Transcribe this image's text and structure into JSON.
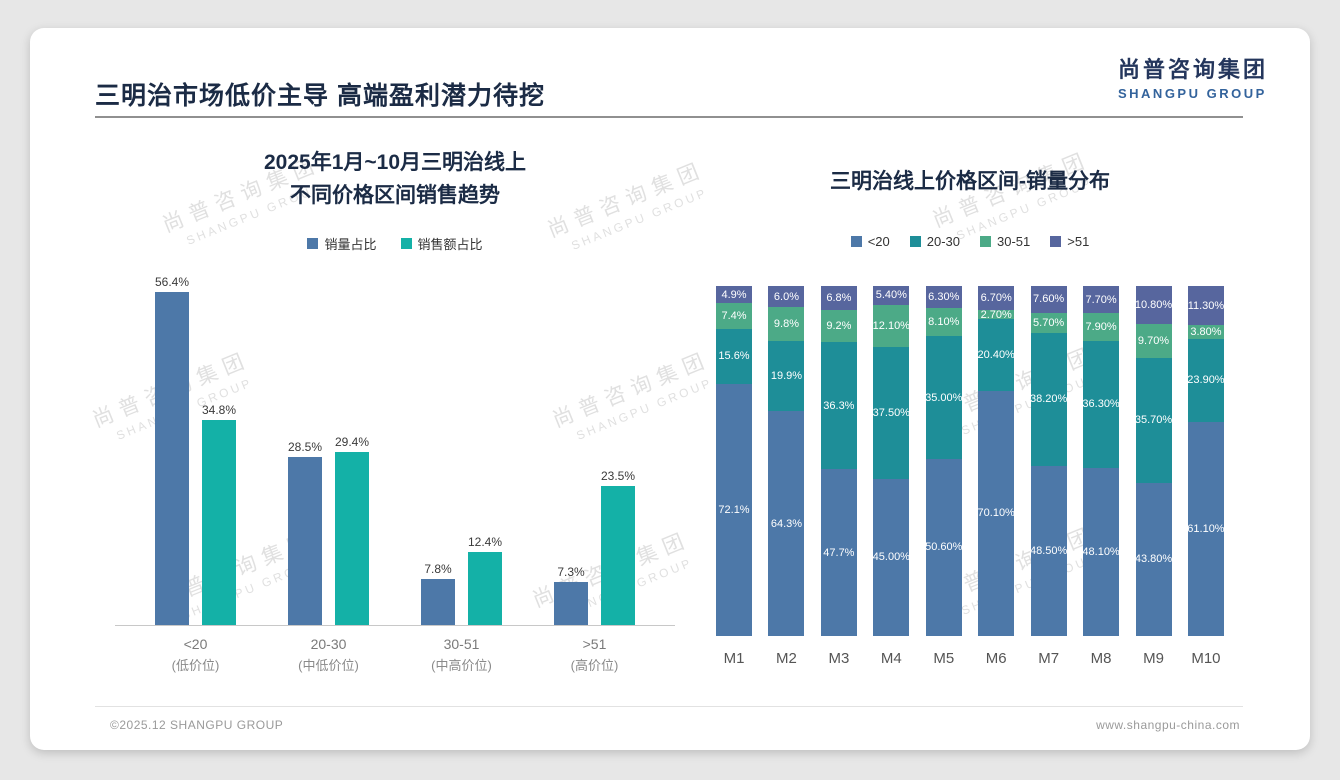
{
  "page": {
    "title": "三明治市场低价主导 高端盈利潜力待挖",
    "logo": {
      "cn": "尚普咨询集团",
      "en": "SHANGPU GROUP"
    },
    "watermark": {
      "line1": "尚普咨询集团",
      "line2": "SHANGPU GROUP"
    },
    "footer": {
      "left": "©2025.12 SHANGPU GROUP",
      "right": "www.shangpu-china.com"
    }
  },
  "chart_data": [
    {
      "type": "bar",
      "stacked": false,
      "title_lines": [
        "2025年1月~10月三明治线上",
        "不同价格区间销售趋势"
      ],
      "categories": [
        "<20",
        "20-30",
        "30-51",
        ">51"
      ],
      "category_sublabels": [
        "(低价位)",
        "(中低价位)",
        "(中高价位)",
        "(高价位)"
      ],
      "series": [
        {
          "name": "销量占比",
          "color": "#4d78a8",
          "values": [
            56.4,
            28.5,
            7.8,
            7.3
          ]
        },
        {
          "name": "销售额占比",
          "color": "#14b1a7",
          "values": [
            34.8,
            29.4,
            12.4,
            23.5
          ]
        }
      ],
      "ylim": [
        0,
        60
      ],
      "value_suffix": "%",
      "legend_position": "top",
      "grid": false
    },
    {
      "type": "bar",
      "stacked": true,
      "title": "三明治线上价格区间-销量分布",
      "categories": [
        "M1",
        "M2",
        "M3",
        "M4",
        "M5",
        "M6",
        "M7",
        "M8",
        "M9",
        "M10"
      ],
      "series": [
        {
          "name": "<20",
          "color": "#4d78a8",
          "values": [
            72.1,
            64.3,
            47.7,
            45.0,
            50.6,
            70.1,
            48.5,
            48.1,
            43.8,
            61.1
          ],
          "labels": [
            "72.1%",
            "64.3%",
            "47.7%",
            "45.00%",
            "50.60%",
            "70.10%",
            "48.50%",
            "48.10%",
            "43.80%",
            "61.10%"
          ]
        },
        {
          "name": "20-30",
          "color": "#1e8e98",
          "values": [
            15.6,
            19.9,
            36.3,
            37.5,
            35.0,
            20.4,
            38.2,
            36.3,
            35.7,
            23.9
          ],
          "labels": [
            "15.6%",
            "19.9%",
            "36.3%",
            "37.50%",
            "35.00%",
            "20.40%",
            "38.20%",
            "36.30%",
            "35.70%",
            "23.90%"
          ]
        },
        {
          "name": "30-51",
          "color": "#4caa87",
          "values": [
            7.4,
            9.8,
            9.2,
            12.1,
            8.1,
            2.7,
            5.7,
            7.9,
            9.7,
            3.8
          ],
          "labels": [
            "7.4%",
            "9.8%",
            "9.2%",
            "12.10%",
            "8.10%",
            "2.70%",
            "5.70%",
            "7.90%",
            "9.70%",
            "3.80%"
          ]
        },
        {
          "name": ">51",
          "color": "#57669e",
          "values": [
            4.9,
            6.0,
            6.8,
            5.4,
            6.3,
            6.7,
            7.6,
            7.7,
            10.8,
            11.3
          ],
          "labels": [
            "4.9%",
            "6.0%",
            "6.8%",
            "5.40%",
            "6.30%",
            "6.70%",
            "7.60%",
            "7.70%",
            "10.80%",
            "11.30%"
          ]
        }
      ],
      "ylim": [
        0,
        100
      ],
      "legend_position": "top",
      "grid": false
    }
  ]
}
